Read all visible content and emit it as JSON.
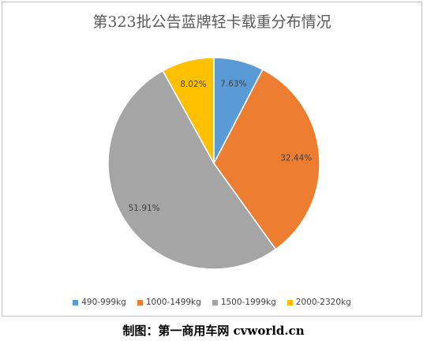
{
  "chart_data": {
    "type": "pie",
    "title": "第323批公告蓝牌轻卡载重分布情况",
    "categories": [
      "490-999kg",
      "1000-1499kg",
      "1500-1999kg",
      "2000-2320kg"
    ],
    "values": [
      7.63,
      32.44,
      51.91,
      8.02
    ],
    "data_labels": [
      "7.63%",
      "32.44%",
      "51.91%",
      "8.02%"
    ],
    "colors": [
      "#5b9bd5",
      "#ed7d31",
      "#a5a5a5",
      "#ffc000"
    ],
    "legend_position": "bottom",
    "start_angle": "12 o'clock, clockwise"
  },
  "caption": "制图：第一商用车网 cvworld.cn"
}
